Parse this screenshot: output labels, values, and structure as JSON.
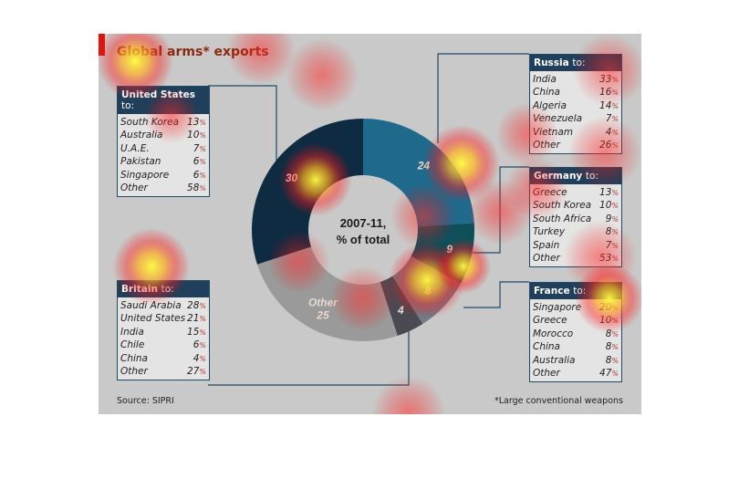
{
  "title": "Global arms* exports",
  "source": "Source: SIPRI",
  "footnote": "*Large conventional weapons",
  "chart_data": {
    "type": "pie",
    "title": "Global arms* exports",
    "center_label": [
      "2007-11,",
      "% of total"
    ],
    "slices": [
      {
        "label": "24",
        "value": 24,
        "color": "#1f6a8c"
      },
      {
        "label": "9",
        "value": 9,
        "color": "#0f4f5a"
      },
      {
        "label": "8",
        "value": 8,
        "color": "#6d7f8b"
      },
      {
        "label": "4",
        "value": 4,
        "color": "#4a4a52"
      },
      {
        "label": "Other",
        "value": 25,
        "value_label": "25",
        "color": "#9a9a9a"
      },
      {
        "label": "30",
        "value": 30,
        "color": "#0e2b42"
      }
    ]
  },
  "tables": {
    "us": {
      "name": "United States",
      "suffix": "to:",
      "rows": [
        {
          "c": "South Korea",
          "v": "13"
        },
        {
          "c": "Australia",
          "v": "10"
        },
        {
          "c": "U.A.E.",
          "v": "7"
        },
        {
          "c": "Pakistan",
          "v": "6"
        },
        {
          "c": "Singapore",
          "v": "6"
        },
        {
          "c": "Other",
          "v": "58"
        }
      ]
    },
    "russia": {
      "name": "Russia",
      "suffix": "to:",
      "rows": [
        {
          "c": "India",
          "v": "33"
        },
        {
          "c": "China",
          "v": "16"
        },
        {
          "c": "Algeria",
          "v": "14"
        },
        {
          "c": "Venezuela",
          "v": "7"
        },
        {
          "c": "Vietnam",
          "v": "4"
        },
        {
          "c": "Other",
          "v": "26"
        }
      ]
    },
    "germany": {
      "name": "Germany",
      "suffix": "to:",
      "rows": [
        {
          "c": "Greece",
          "v": "13"
        },
        {
          "c": "South Korea",
          "v": "10"
        },
        {
          "c": "South Africa",
          "v": "9"
        },
        {
          "c": "Turkey",
          "v": "8"
        },
        {
          "c": "Spain",
          "v": "7"
        },
        {
          "c": "Other",
          "v": "53"
        }
      ]
    },
    "britain": {
      "name": "Britain",
      "suffix": "to:",
      "rows": [
        {
          "c": "Saudi Arabia",
          "v": "28"
        },
        {
          "c": "United States",
          "v": "21"
        },
        {
          "c": "India",
          "v": "15"
        },
        {
          "c": "Chile",
          "v": "6"
        },
        {
          "c": "China",
          "v": "4"
        },
        {
          "c": "Other",
          "v": "27"
        }
      ]
    },
    "france": {
      "name": "France",
      "suffix": "to:",
      "rows": [
        {
          "c": "Singapore",
          "v": "20"
        },
        {
          "c": "Greece",
          "v": "10"
        },
        {
          "c": "Morocco",
          "v": "8"
        },
        {
          "c": "China",
          "v": "8"
        },
        {
          "c": "Australia",
          "v": "8"
        },
        {
          "c": "Other",
          "v": "47"
        }
      ]
    }
  },
  "pct_symbol": "%"
}
